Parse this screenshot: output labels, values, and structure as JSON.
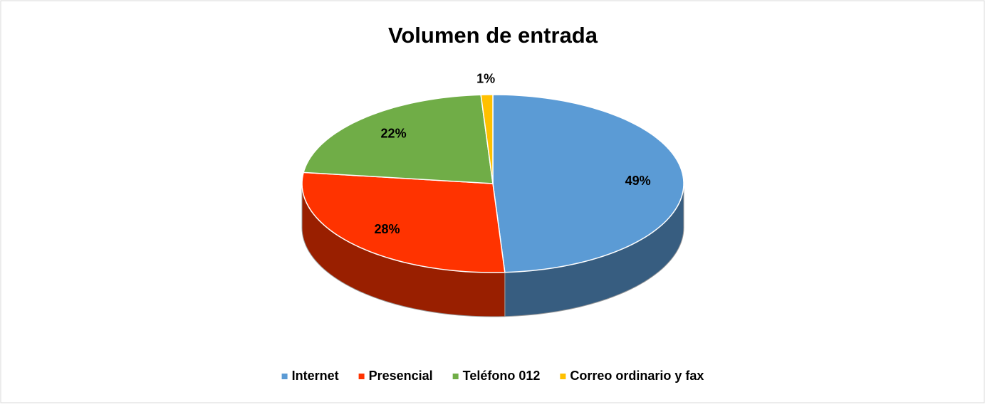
{
  "chart_data": {
    "type": "pie",
    "title": "Volumen de entrada",
    "categories": [
      "Internet",
      "Presencial",
      "Teléfono 012",
      "Correo ordinario y fax"
    ],
    "values": [
      49,
      28,
      22,
      1
    ],
    "value_labels": [
      "49%",
      "28%",
      "22%",
      "1%"
    ],
    "colors": [
      "#5b9bd5",
      "#ff3300",
      "#70ad47",
      "#ffc000"
    ],
    "legend": "bottom"
  }
}
